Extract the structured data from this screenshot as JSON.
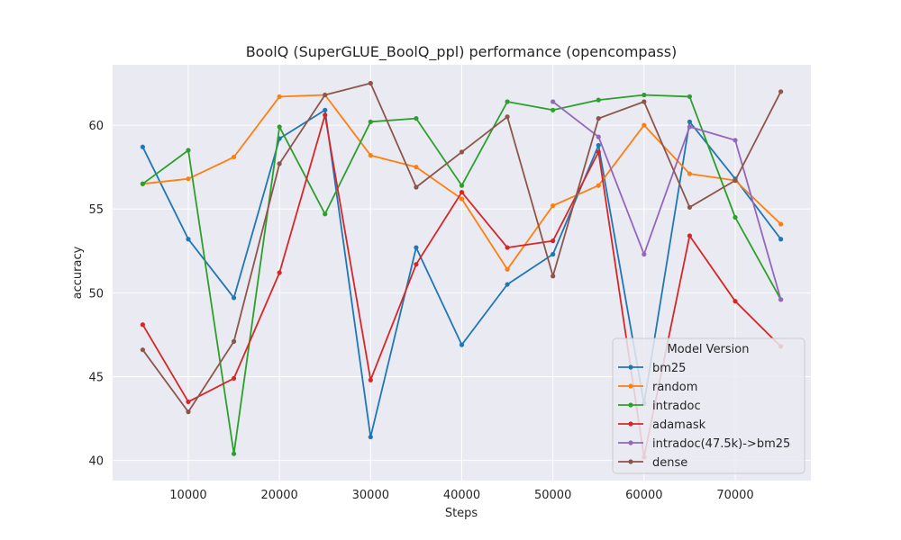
{
  "chart_data": {
    "type": "line",
    "title": "BoolQ (SuperGLUE_BoolQ_ppl) performance (opencompass)",
    "xlabel": "Steps",
    "ylabel": "accuracy",
    "xlim": [
      1700,
      78300
    ],
    "ylim": [
      38.8,
      63.6
    ],
    "xticks": [
      10000,
      20000,
      30000,
      40000,
      50000,
      60000,
      70000
    ],
    "yticks": [
      40,
      45,
      50,
      55,
      60
    ],
    "grid": true,
    "legend": {
      "title": "Model Version",
      "placement": "lower-right"
    },
    "series": [
      {
        "name": "bm25",
        "color": "#1f77b4",
        "points": [
          [
            5000,
            58.7
          ],
          [
            10000,
            53.2
          ],
          [
            15000,
            49.7
          ],
          [
            20000,
            59.2
          ],
          [
            25000,
            60.9
          ],
          [
            30000,
            41.4
          ],
          [
            35000,
            52.7
          ],
          [
            40000,
            46.9
          ],
          [
            45000,
            50.5
          ],
          [
            50000,
            52.3
          ],
          [
            55000,
            58.8
          ],
          [
            60000,
            43.4
          ],
          [
            65000,
            60.2
          ],
          [
            70000,
            56.8
          ],
          [
            75000,
            53.2
          ]
        ]
      },
      {
        "name": "random",
        "color": "#ff7f0e",
        "points": [
          [
            5000,
            56.5
          ],
          [
            10000,
            56.8
          ],
          [
            15000,
            58.1
          ],
          [
            20000,
            61.7
          ],
          [
            25000,
            61.8
          ],
          [
            30000,
            58.2
          ],
          [
            35000,
            57.5
          ],
          [
            40000,
            55.6
          ],
          [
            45000,
            51.4
          ],
          [
            50000,
            55.2
          ],
          [
            55000,
            56.4
          ],
          [
            60000,
            60.0
          ],
          [
            65000,
            57.1
          ],
          [
            70000,
            56.7
          ],
          [
            75000,
            54.1
          ]
        ]
      },
      {
        "name": "intradoc",
        "color": "#2ca02c",
        "points": [
          [
            5000,
            56.5
          ],
          [
            10000,
            58.5
          ],
          [
            15000,
            40.4
          ],
          [
            20000,
            59.9
          ],
          [
            25000,
            54.7
          ],
          [
            30000,
            60.2
          ],
          [
            35000,
            60.4
          ],
          [
            40000,
            56.4
          ],
          [
            45000,
            61.4
          ],
          [
            50000,
            60.9
          ],
          [
            55000,
            61.5
          ],
          [
            60000,
            61.8
          ],
          [
            65000,
            61.7
          ],
          [
            70000,
            54.5
          ],
          [
            75000,
            49.6
          ]
        ]
      },
      {
        "name": "adamask",
        "color": "#d62728",
        "points": [
          [
            5000,
            48.1
          ],
          [
            10000,
            43.5
          ],
          [
            15000,
            44.9
          ],
          [
            20000,
            51.2
          ],
          [
            25000,
            60.6
          ],
          [
            30000,
            44.8
          ],
          [
            35000,
            51.7
          ],
          [
            40000,
            56.0
          ],
          [
            45000,
            52.7
          ],
          [
            50000,
            53.1
          ],
          [
            55000,
            58.4
          ],
          [
            60000,
            40.2
          ],
          [
            65000,
            53.4
          ],
          [
            70000,
            49.5
          ],
          [
            75000,
            46.8
          ]
        ]
      },
      {
        "name": "intradoc(47.5k)->bm25",
        "color": "#9467bd",
        "points": [
          [
            50000,
            61.4
          ],
          [
            55000,
            59.3
          ],
          [
            60000,
            52.3
          ],
          [
            65000,
            59.9
          ],
          [
            70000,
            59.1
          ],
          [
            75000,
            49.6
          ]
        ]
      },
      {
        "name": "dense",
        "color": "#8c564b",
        "points": [
          [
            5000,
            46.6
          ],
          [
            10000,
            42.9
          ],
          [
            15000,
            47.1
          ],
          [
            20000,
            57.7
          ],
          [
            25000,
            61.8
          ],
          [
            30000,
            62.5
          ],
          [
            35000,
            56.3
          ],
          [
            40000,
            58.4
          ],
          [
            45000,
            60.5
          ],
          [
            50000,
            51.0
          ],
          [
            55000,
            60.4
          ],
          [
            60000,
            61.4
          ],
          [
            65000,
            55.1
          ],
          [
            70000,
            56.7
          ],
          [
            75000,
            62.0
          ]
        ]
      }
    ]
  }
}
